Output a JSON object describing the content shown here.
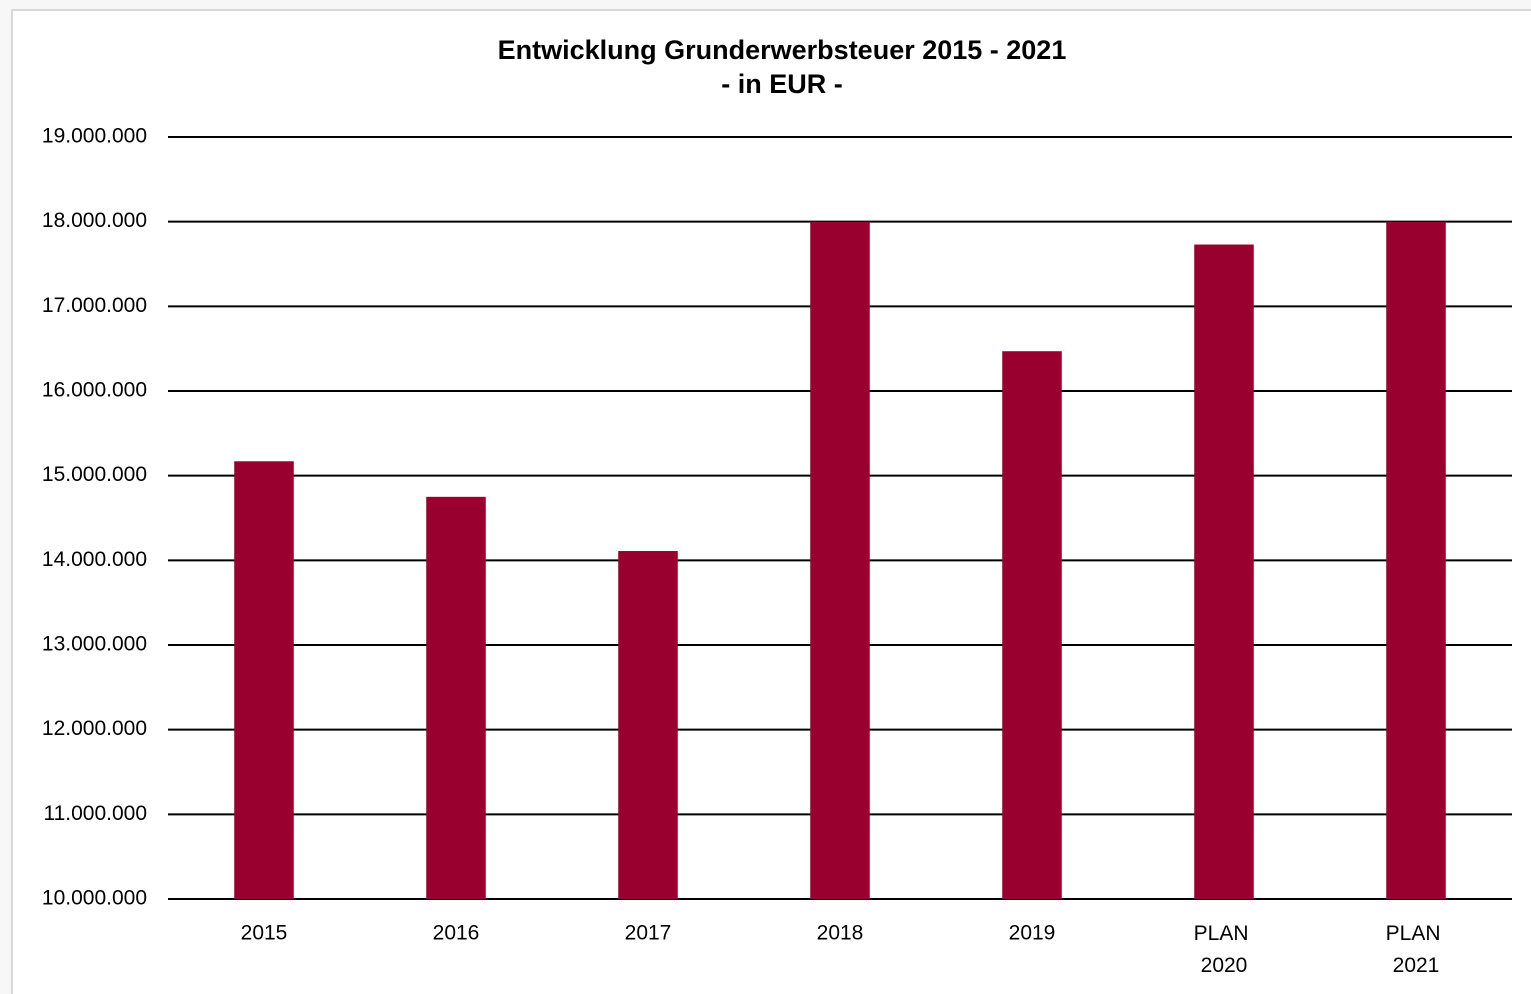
{
  "chart_data": {
    "type": "bar",
    "title": "Entwicklung Grunderwerbsteuer 2015 - 2021",
    "subtitle": "- in EUR -",
    "categories": [
      "2015",
      "2016",
      "2017",
      "2018",
      "2019",
      "PLAN 2020",
      "PLAN 2021"
    ],
    "values": [
      15170000,
      14750000,
      14110000,
      18000000,
      16470000,
      17730000,
      18000000
    ],
    "color": "#990030",
    "ylim": [
      10000000,
      19000000
    ],
    "yticks": [
      {
        "value": 10000000,
        "label": "10.000.000"
      },
      {
        "value": 11000000,
        "label": "11.000.000"
      },
      {
        "value": 12000000,
        "label": "12.000.000"
      },
      {
        "value": 13000000,
        "label": "13.000.000"
      },
      {
        "value": 14000000,
        "label": "14.000.000"
      },
      {
        "value": 15000000,
        "label": "15.000.000"
      },
      {
        "value": 16000000,
        "label": "16.000.000"
      },
      {
        "value": 17000000,
        "label": "17.000.000"
      },
      {
        "value": 18000000,
        "label": "18.000.000"
      },
      {
        "value": 19000000,
        "label": "19.000.000"
      }
    ],
    "grid": true
  }
}
